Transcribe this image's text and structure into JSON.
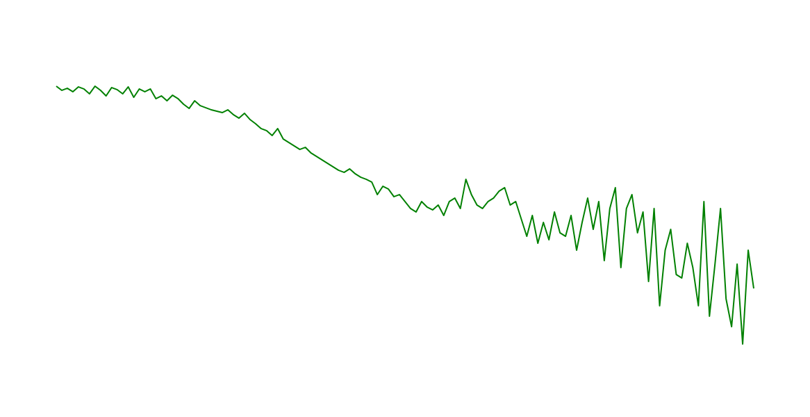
{
  "chart_data": {
    "type": "line",
    "color": "#008000",
    "ylim": [
      0,
      600
    ],
    "values": [
      476,
      470,
      473,
      468,
      475,
      472,
      465,
      476,
      470,
      462,
      474,
      471,
      465,
      475,
      460,
      472,
      468,
      472,
      458,
      462,
      455,
      463,
      458,
      450,
      444,
      455,
      448,
      445,
      442,
      440,
      438,
      442,
      435,
      430,
      437,
      428,
      422,
      415,
      412,
      405,
      415,
      400,
      395,
      390,
      385,
      388,
      380,
      375,
      370,
      365,
      360,
      355,
      352,
      357,
      350,
      345,
      342,
      338,
      320,
      332,
      328,
      317,
      320,
      310,
      300,
      295,
      310,
      302,
      298,
      305,
      290,
      310,
      315,
      300,
      342,
      320,
      305,
      300,
      310,
      315,
      325,
      330,
      305,
      310,
      285,
      260,
      290,
      250,
      280,
      255,
      295,
      265,
      260,
      290,
      240,
      280,
      315,
      270,
      310,
      225,
      300,
      330,
      215,
      300,
      320,
      265,
      295,
      195,
      300,
      160,
      240,
      270,
      205,
      200,
      250,
      215,
      160,
      310,
      145,
      220,
      300,
      170,
      130,
      220,
      105,
      240,
      185
    ]
  }
}
